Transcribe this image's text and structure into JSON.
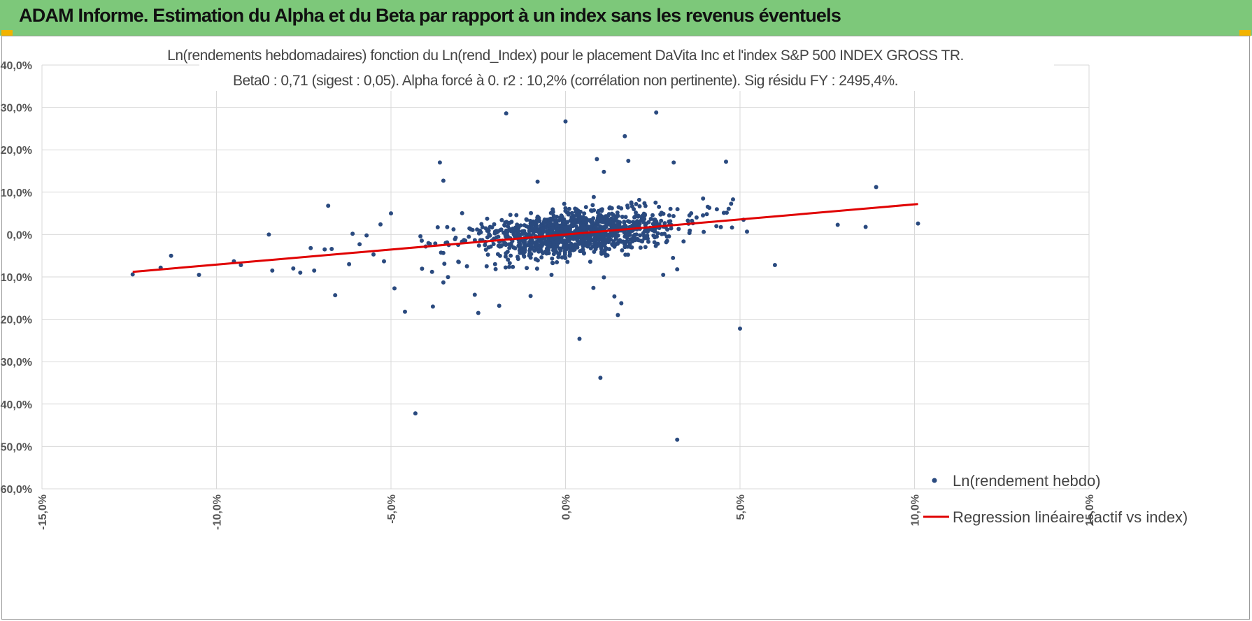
{
  "header": {
    "title": "ADAM Informe. Estimation du Alpha et du Beta par rapport à un index sans les revenus éventuels"
  },
  "colors": {
    "banner": "#7dc87a",
    "points": "#2a4a7f",
    "regression": "#e00000",
    "grid": "#d9d9d9"
  },
  "chart_data": {
    "type": "scatter",
    "title": [
      "Ln(rendements hebdomadaires) fonction du Ln(rend_Index) pour le placement DaVita Inc et l'index S&P 500 INDEX GROSS TR.",
      "Beta0 : 0,71 (sigest : 0,05).  Alpha forcé à 0. r2 : 10,2% (corrélation non pertinente). Sig résidu FY : 2495,4%."
    ],
    "xlabel": "",
    "ylabel": "",
    "xlim": [
      -15,
      15
    ],
    "ylim": [
      -60,
      40
    ],
    "x_ticks": [
      -15,
      -10,
      -5,
      0,
      5,
      10,
      15
    ],
    "y_ticks": [
      40,
      30,
      20,
      10,
      0,
      -10,
      -20,
      -30,
      -40,
      -50,
      -60
    ],
    "x_tick_labels": [
      "-15,0%",
      "-10,0%",
      "-5,0%",
      "0,0%",
      "5,0%",
      "10,0%",
      "15,0%"
    ],
    "y_tick_labels": [
      "40,0%",
      "30,0%",
      "20,0%",
      "10,0%",
      "0,0%",
      "-10,0%",
      "-20,0%",
      "-30,0%",
      "-40,0%",
      "-50,0%",
      "-60,0%"
    ],
    "grid": true,
    "legend_position": "bottom-right",
    "series": [
      {
        "name": "Ln(rendement hebdo)",
        "kind": "scatter",
        "note": "Notable/outlier points read from the chart; the dense central cloud (about 1200 weekly observations scattered around the regression line, mostly within x -4..5 %, y -10..10 %) is generated by the page script from the regression parameters.",
        "points": [
          [
            -12.4,
            -9.4
          ],
          [
            -11.6,
            -7.8
          ],
          [
            -11.3,
            -5.0
          ],
          [
            -10.5,
            -9.5
          ],
          [
            -9.5,
            -6.3
          ],
          [
            -9.3,
            -7.2
          ],
          [
            -8.5,
            0.0
          ],
          [
            -8.4,
            -8.5
          ],
          [
            -7.8,
            -8.0
          ],
          [
            -7.6,
            -9.0
          ],
          [
            -7.3,
            -3.2
          ],
          [
            -7.2,
            -8.5
          ],
          [
            -6.9,
            -3.5
          ],
          [
            -6.8,
            6.8
          ],
          [
            -6.7,
            -3.4
          ],
          [
            -6.6,
            -14.3
          ],
          [
            -6.2,
            -7.0
          ],
          [
            -6.1,
            0.2
          ],
          [
            -5.9,
            -2.3
          ],
          [
            -5.7,
            -0.2
          ],
          [
            -5.5,
            -4.7
          ],
          [
            -5.3,
            2.4
          ],
          [
            -5.2,
            -6.3
          ],
          [
            -5.0,
            5.0
          ],
          [
            -4.9,
            -12.7
          ],
          [
            -4.6,
            -18.2
          ],
          [
            -4.3,
            -42.2
          ],
          [
            -3.8,
            -17.0
          ],
          [
            -3.6,
            17.0
          ],
          [
            -3.5,
            12.7
          ],
          [
            -3.5,
            -11.3
          ],
          [
            -2.6,
            -14.2
          ],
          [
            -2.5,
            -18.5
          ],
          [
            -1.9,
            -16.8
          ],
          [
            -1.7,
            28.6
          ],
          [
            -1.0,
            -14.5
          ],
          [
            -0.8,
            12.5
          ],
          [
            -0.4,
            -9.5
          ],
          [
            0.0,
            26.7
          ],
          [
            0.4,
            -24.6
          ],
          [
            0.8,
            -12.6
          ],
          [
            0.9,
            17.8
          ],
          [
            1.0,
            -33.8
          ],
          [
            1.1,
            14.8
          ],
          [
            1.1,
            -10.1
          ],
          [
            1.4,
            -14.6
          ],
          [
            1.5,
            -19.0
          ],
          [
            1.6,
            -16.2
          ],
          [
            1.7,
            23.2
          ],
          [
            1.8,
            17.4
          ],
          [
            2.6,
            28.8
          ],
          [
            2.8,
            -9.5
          ],
          [
            3.1,
            17.0
          ],
          [
            3.2,
            -8.2
          ],
          [
            3.2,
            -48.4
          ],
          [
            4.6,
            17.2
          ],
          [
            4.8,
            8.3
          ],
          [
            5.0,
            -22.2
          ],
          [
            5.1,
            3.5
          ],
          [
            5.2,
            0.7
          ],
          [
            6.0,
            -7.2
          ],
          [
            7.8,
            2.3
          ],
          [
            8.6,
            1.8
          ],
          [
            8.9,
            11.2
          ],
          [
            10.1,
            2.6
          ]
        ]
      },
      {
        "name": "Regression linéaire (actif vs index)",
        "kind": "line",
        "x": [
          -12.4,
          10.1
        ],
        "y": [
          -8.8,
          7.2
        ]
      }
    ],
    "regression": {
      "beta": 0.71,
      "alpha": 0,
      "r2": 10.2
    }
  }
}
